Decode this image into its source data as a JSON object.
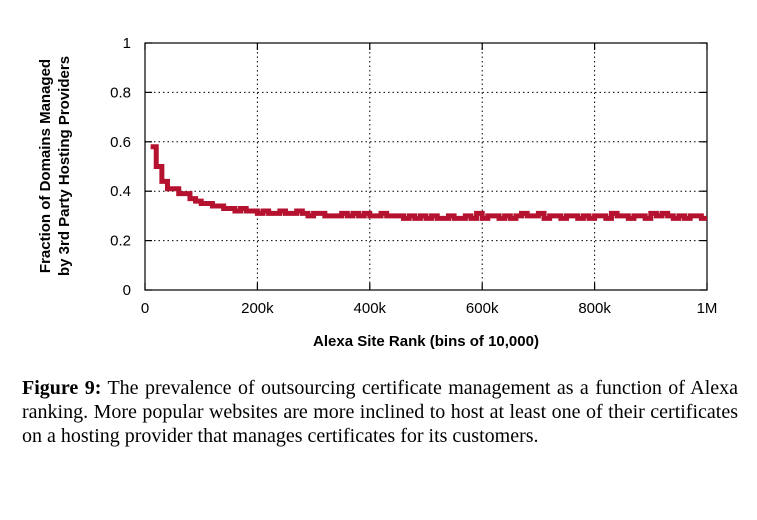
{
  "chart_data": {
    "type": "line",
    "step": true,
    "xlabel": "Alexa Site Rank (bins of 10,000)",
    "ylabel_lines": [
      "Fraction of Domains Managed",
      "by 3rd Party Hosting Providers"
    ],
    "xlim": [
      0,
      1000000
    ],
    "ylim": [
      0,
      1
    ],
    "xticks": [
      0,
      200000,
      400000,
      600000,
      800000,
      1000000
    ],
    "xtick_labels": [
      "0",
      "200k",
      "400k",
      "600k",
      "800k",
      "1M"
    ],
    "yticks": [
      0,
      0.2,
      0.4,
      0.6,
      0.8,
      1
    ],
    "ytick_labels": [
      "0",
      "0.2",
      "0.4",
      "0.6",
      "0.8",
      "1"
    ],
    "grid": true,
    "line_color": "#b5122f",
    "series": [
      {
        "x": [
          10000,
          20000,
          30000,
          40000,
          50000,
          60000,
          70000,
          80000,
          90000,
          100000,
          110000,
          120000,
          130000,
          140000,
          150000,
          160000,
          170000,
          180000,
          190000,
          200000,
          210000,
          220000,
          230000,
          240000,
          250000,
          260000,
          270000,
          280000,
          290000,
          300000,
          310000,
          320000,
          330000,
          340000,
          350000,
          360000,
          370000,
          380000,
          390000,
          400000,
          410000,
          420000,
          430000,
          440000,
          450000,
          460000,
          470000,
          480000,
          490000,
          500000,
          510000,
          520000,
          530000,
          540000,
          550000,
          560000,
          570000,
          580000,
          590000,
          600000,
          610000,
          620000,
          630000,
          640000,
          650000,
          660000,
          670000,
          680000,
          690000,
          700000,
          710000,
          720000,
          730000,
          740000,
          750000,
          760000,
          770000,
          780000,
          790000,
          800000,
          810000,
          820000,
          830000,
          840000,
          850000,
          860000,
          870000,
          880000,
          890000,
          900000,
          910000,
          920000,
          930000,
          940000,
          950000,
          960000,
          970000,
          980000,
          990000,
          1000000
        ],
        "y": [
          0.58,
          0.5,
          0.44,
          0.41,
          0.41,
          0.39,
          0.39,
          0.37,
          0.36,
          0.35,
          0.35,
          0.34,
          0.34,
          0.33,
          0.33,
          0.32,
          0.33,
          0.32,
          0.32,
          0.31,
          0.32,
          0.31,
          0.31,
          0.32,
          0.31,
          0.31,
          0.32,
          0.31,
          0.3,
          0.31,
          0.31,
          0.3,
          0.3,
          0.3,
          0.31,
          0.3,
          0.31,
          0.3,
          0.31,
          0.3,
          0.3,
          0.31,
          0.3,
          0.3,
          0.3,
          0.29,
          0.3,
          0.29,
          0.3,
          0.29,
          0.3,
          0.29,
          0.29,
          0.3,
          0.29,
          0.29,
          0.3,
          0.29,
          0.31,
          0.29,
          0.3,
          0.3,
          0.29,
          0.3,
          0.29,
          0.3,
          0.31,
          0.3,
          0.3,
          0.31,
          0.29,
          0.3,
          0.3,
          0.29,
          0.3,
          0.3,
          0.29,
          0.3,
          0.29,
          0.3,
          0.3,
          0.29,
          0.31,
          0.3,
          0.3,
          0.29,
          0.3,
          0.3,
          0.29,
          0.31,
          0.3,
          0.31,
          0.3,
          0.29,
          0.3,
          0.29,
          0.3,
          0.3,
          0.29,
          0.29
        ]
      }
    ]
  },
  "caption": {
    "label": "Figure 9:",
    "text": "The prevalence of outsourcing certificate management as a function of Alexa ranking. More popular websites are more inclined to host at least one of their certificates on a hosting provider that manages certificates for its customers."
  }
}
